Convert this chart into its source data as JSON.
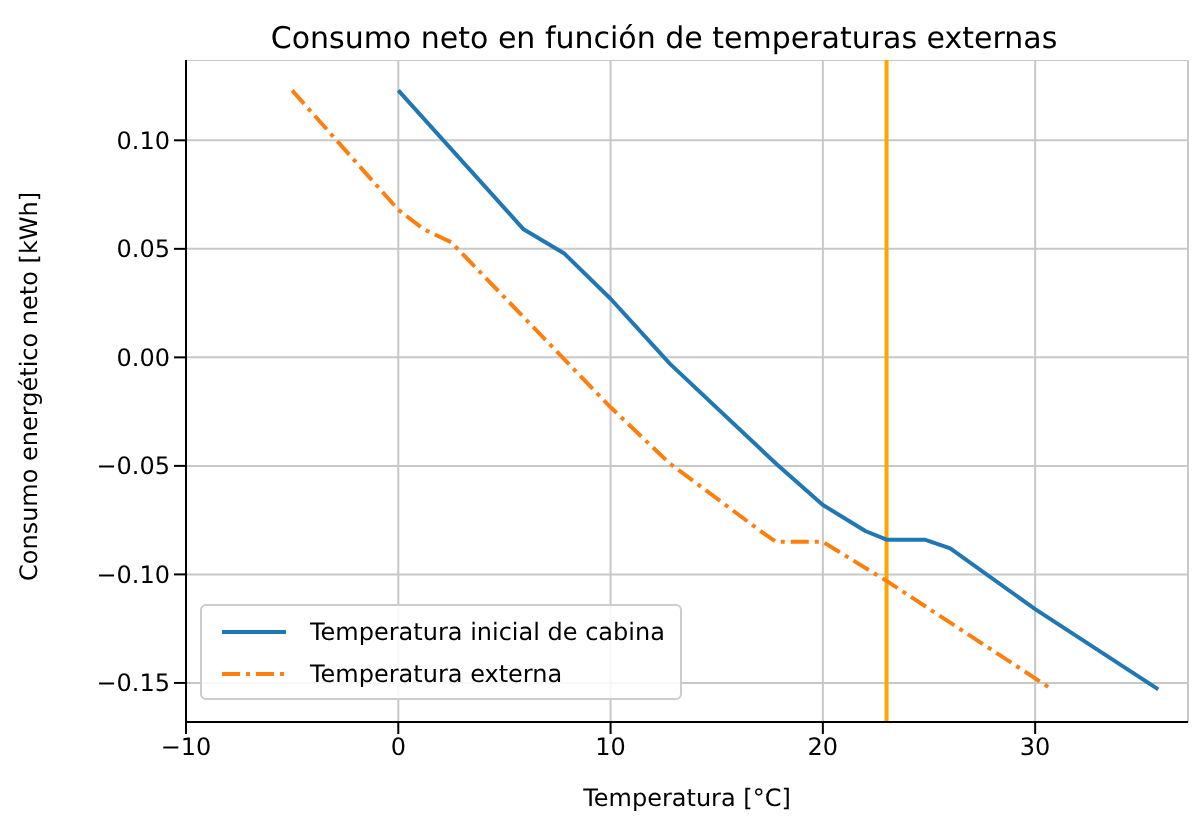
{
  "chart_data": {
    "type": "line",
    "title": "Consumo neto en función de temperaturas externas",
    "xlabel": "Temperatura [°C]",
    "ylabel": "Consumo energético neto [kWh]",
    "xlim": [
      -10,
      37.2
    ],
    "xticks": [
      {
        "value": -10,
        "label": "−10"
      },
      0,
      10,
      20,
      30
    ],
    "ylim": [
      -0.168,
      0.137
    ],
    "yticks": [
      {
        "value": -0.15,
        "label": "−0.15"
      },
      {
        "value": -0.1,
        "label": "−0.10"
      },
      {
        "value": -0.05,
        "label": "−0.05"
      },
      {
        "value": 0,
        "label": "0.00"
      },
      {
        "value": 0.05,
        "label": "0.05"
      },
      {
        "value": 0.1,
        "label": "0.10"
      }
    ],
    "grid": true,
    "legend": "bottom left",
    "series": [
      {
        "name": "Temperatura inicial de cabina",
        "color": "#1f77b4",
        "line_style": "solid",
        "x": [
          0,
          5.9,
          7.8,
          10,
          12.8,
          17.8,
          20,
          22,
          23,
          24.8,
          26,
          30,
          35.8
        ],
        "values": [
          0.123,
          0.059,
          0.048,
          0.027,
          -0.003,
          -0.049,
          -0.068,
          -0.08,
          -0.084,
          -0.084,
          -0.088,
          -0.116,
          -0.153
        ]
      },
      {
        "name": "Temperatura externa",
        "color": "#ff7f0e",
        "line_style": "dashdot",
        "x": [
          -5,
          0,
          1.2,
          2.5,
          10,
          12.8,
          17.2,
          17.8,
          20,
          23,
          30.8
        ],
        "values": [
          0.123,
          0.068,
          0.059,
          0.053,
          -0.023,
          -0.049,
          -0.081,
          -0.085,
          -0.085,
          -0.103,
          -0.153
        ]
      }
    ],
    "ref_lines": [
      {
        "axis": "x",
        "value": 23,
        "color": "#ffa500",
        "line_style": "solid"
      }
    ]
  }
}
